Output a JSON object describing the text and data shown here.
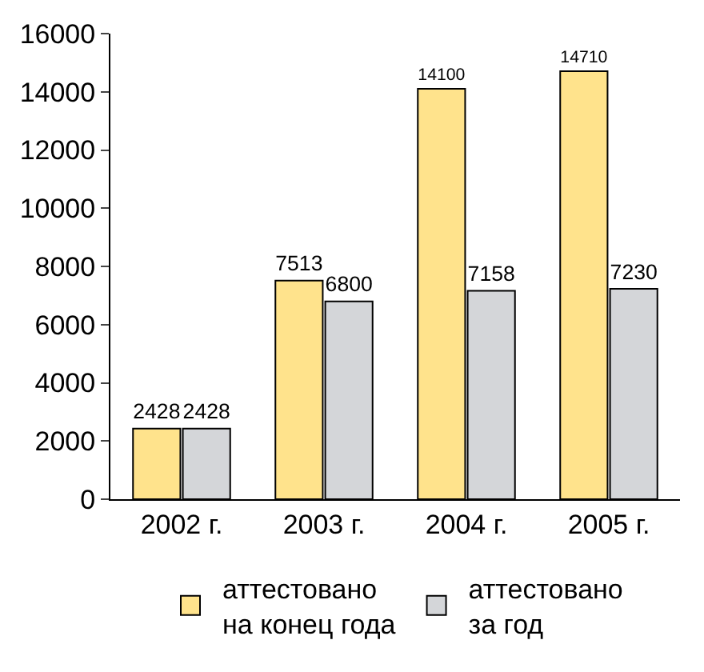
{
  "chart_data": {
    "type": "bar",
    "categories": [
      "2002 г.",
      "2003 г.",
      "2004 г.",
      "2005 г."
    ],
    "series": [
      {
        "name": "аттестовано\nна конец года",
        "color": "#ffe38c",
        "values": [
          2428,
          7513,
          14100,
          14710
        ]
      },
      {
        "name": "аттестовано\nза год",
        "color": "#d4d6d9",
        "values": [
          2428,
          6800,
          7158,
          7230
        ]
      }
    ],
    "ylim": [
      0,
      16000
    ],
    "yticks": [
      0,
      2000,
      4000,
      6000,
      8000,
      10000,
      12000,
      14000,
      16000
    ],
    "grid": false,
    "legend": "bottom",
    "data_labels": true
  }
}
